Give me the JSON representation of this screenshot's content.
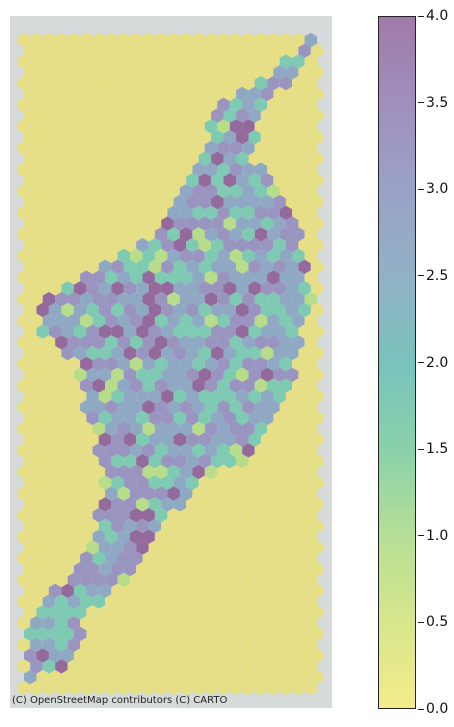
{
  "map": {
    "attribution": "(C) OpenStreetMap contributors (C) CARTO",
    "basemap_color": "#d6dadb",
    "hexbin_opacity": 0.6
  },
  "colorbar": {
    "min": 0.0,
    "max": 4.0,
    "ticks": [
      "0.0",
      "0.5",
      "1.0",
      "1.5",
      "2.0",
      "2.5",
      "3.0",
      "3.5",
      "4.0"
    ],
    "colormap": "viridis_r",
    "colors": [
      "#f0e66a",
      "#b8dd78",
      "#7ecaa0",
      "#6cb8b4",
      "#8f9bc4",
      "#9a8bbb",
      "#8f6aa0"
    ]
  }
}
